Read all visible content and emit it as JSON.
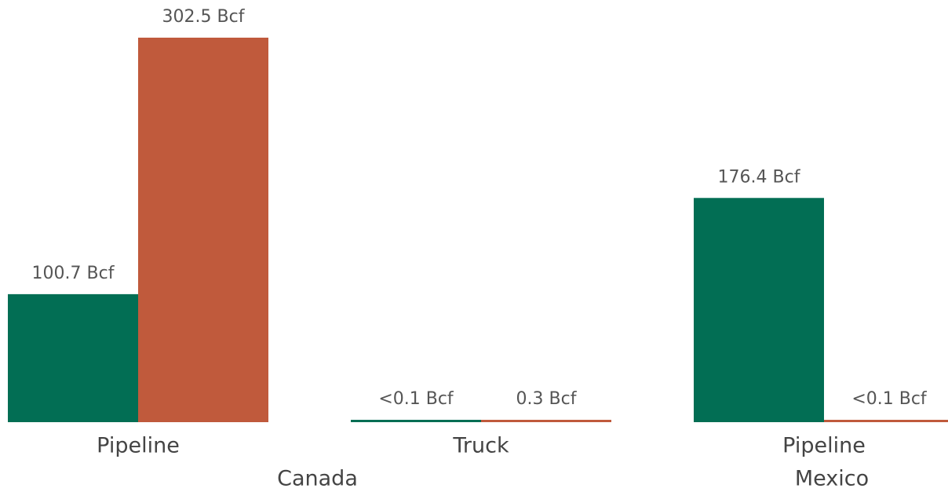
{
  "chart_data": {
    "type": "bar",
    "groups": [
      {
        "label": "Canada",
        "categories": [
          "Pipeline",
          "Truck"
        ]
      },
      {
        "label": "Mexico",
        "categories": [
          "Pipeline"
        ]
      }
    ],
    "series": [
      {
        "color": "#026e54",
        "values": [
          100.7,
          0.05,
          176.4
        ],
        "value_labels": [
          "100.7 Bcf",
          "<0.1 Bcf",
          "176.4 Bcf"
        ]
      },
      {
        "color": "#c05a3c",
        "values": [
          302.5,
          0.3,
          0.05
        ],
        "value_labels": [
          "302.5 Bcf",
          "0.3 Bcf",
          "<0.1 Bcf"
        ]
      }
    ]
  }
}
